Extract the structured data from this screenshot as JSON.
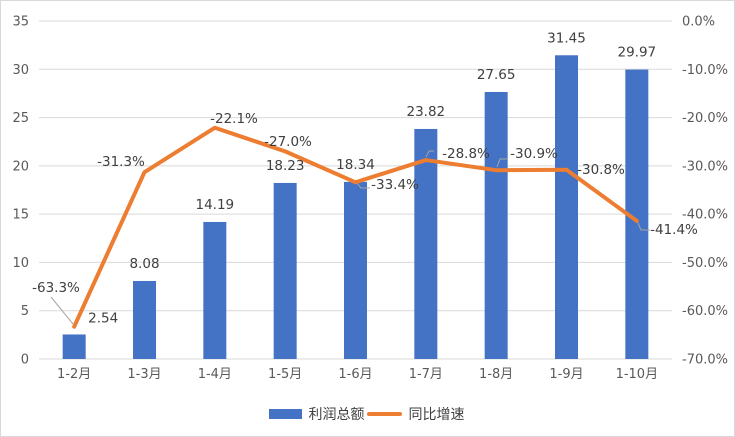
{
  "colors": {
    "bar": "#4472C4",
    "line": "#ED7D31",
    "grid": "#D9D9D9",
    "axis_text": "#595959",
    "label_text": "#404040",
    "leader": "#A6A6A6",
    "border": "#D9D9D9",
    "background": "#FFFFFF"
  },
  "legend": {
    "items": [
      {
        "label": "利润总额",
        "marker": "bar",
        "color": "#4472C4"
      },
      {
        "label": "同比增速",
        "marker": "line",
        "color": "#ED7D31"
      }
    ]
  },
  "chart_data": {
    "type": "bar",
    "subtype": "bar-line-combo",
    "title": "",
    "xlabel": "",
    "ylabel": "",
    "grid": true,
    "legend_position": "bottom",
    "categories": [
      "1-2月",
      "1-3月",
      "1-4月",
      "1-5月",
      "1-6月",
      "1-7月",
      "1-8月",
      "1-9月",
      "1-10月"
    ],
    "series": [
      {
        "name": "利润总额",
        "type": "bar",
        "axis": "left",
        "color": "#4472C4",
        "values": [
          2.54,
          8.08,
          14.19,
          18.23,
          18.34,
          23.82,
          27.65,
          31.45,
          29.97
        ],
        "labels": [
          "2.54",
          "8.08",
          "14.19",
          "18.23",
          "18.34",
          "23.82",
          "27.65",
          "31.45",
          "29.97"
        ]
      },
      {
        "name": "同比增速",
        "type": "line",
        "axis": "right",
        "color": "#ED7D31",
        "values": [
          -63.3,
          -31.3,
          -22.1,
          -27.0,
          -33.4,
          -28.8,
          -30.9,
          -30.8,
          -41.4
        ],
        "labels": [
          "-63.3%",
          "-31.3%",
          "-22.1%",
          "-27.0%",
          "-33.4%",
          "-28.8%",
          "-30.9%",
          "-30.8%",
          "-41.4%"
        ]
      }
    ],
    "left_axis": {
      "min": 0,
      "max": 35,
      "step": 5,
      "ticks_top_to_bottom": [
        "35",
        "30",
        "25",
        "20",
        "15",
        "10",
        "5",
        "0"
      ]
    },
    "right_axis": {
      "min": -70,
      "max": 0,
      "step": 10,
      "ticks_top_to_bottom": [
        "0.0%",
        "-10.0%",
        "-20.0%",
        "-30.0%",
        "-40.0%",
        "-50.0%",
        "-60.0%",
        "-70.0%"
      ]
    }
  }
}
